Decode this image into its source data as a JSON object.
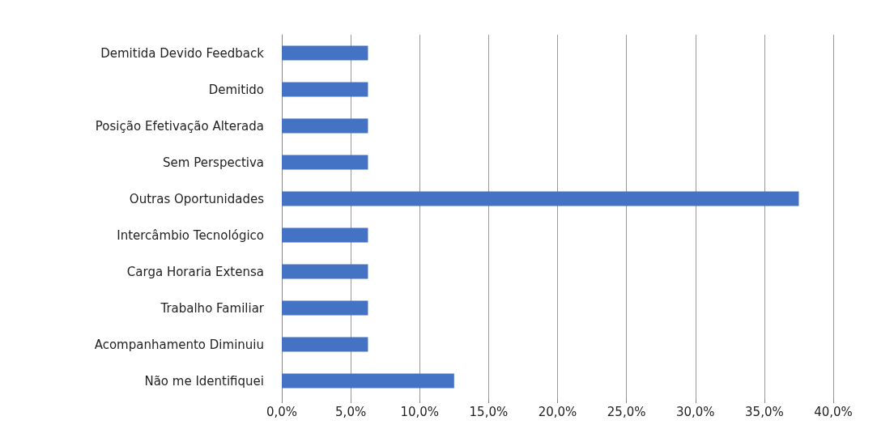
{
  "chart_data": {
    "type": "bar",
    "orientation": "horizontal",
    "categories": [
      "Demitida Devido Feedback",
      "Demitido",
      "Posição Efetivação Alterada",
      "Sem Perspectiva",
      "Outras Oportunidades",
      "Intercâmbio Tecnológico",
      "Carga Horaria Extensa",
      "Trabalho Familiar",
      "Acompanhamento Diminuiu",
      "Não me Identifiquei"
    ],
    "values": [
      6.25,
      6.25,
      6.25,
      6.25,
      37.5,
      6.25,
      6.25,
      6.25,
      6.25,
      12.5
    ],
    "color": "#4472c4",
    "xlim": [
      0,
      40
    ],
    "xticks": [
      {
        "value": 0,
        "label": "0,0%"
      },
      {
        "value": 5,
        "label": "5,0%"
      },
      {
        "value": 10,
        "label": "10,0%"
      },
      {
        "value": 15,
        "label": "15,0%"
      },
      {
        "value": 20,
        "label": "20,0%"
      },
      {
        "value": 25,
        "label": "25,0%"
      },
      {
        "value": 30,
        "label": "30,0%"
      },
      {
        "value": 35,
        "label": "35,0%"
      },
      {
        "value": 40,
        "label": "40,0%"
      }
    ],
    "grid": "x"
  }
}
